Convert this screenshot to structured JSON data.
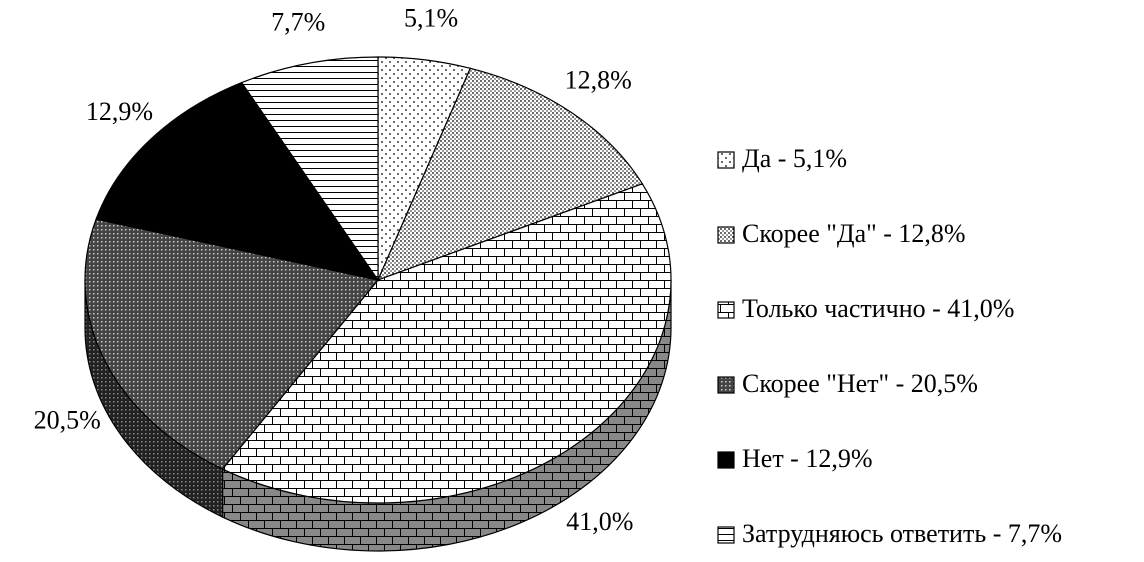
{
  "chart_data": {
    "type": "pie3d",
    "labels": [
      "Да - 5,1%",
      "Скорее \"Да\" - 12,8%",
      "Только частично - 41,0%",
      "Скорее \"Нет\" - 20,5%",
      "Нет - 12,9%",
      "Затрудняюсь ответить - 7,7%"
    ],
    "values": [
      5.1,
      12.8,
      41.0,
      20.5,
      12.9,
      7.7
    ],
    "value_labels": [
      "5,1%",
      "12,8%",
      "41,0%",
      "20,5%",
      "12,9%",
      "7,7%"
    ],
    "legend": "right"
  }
}
